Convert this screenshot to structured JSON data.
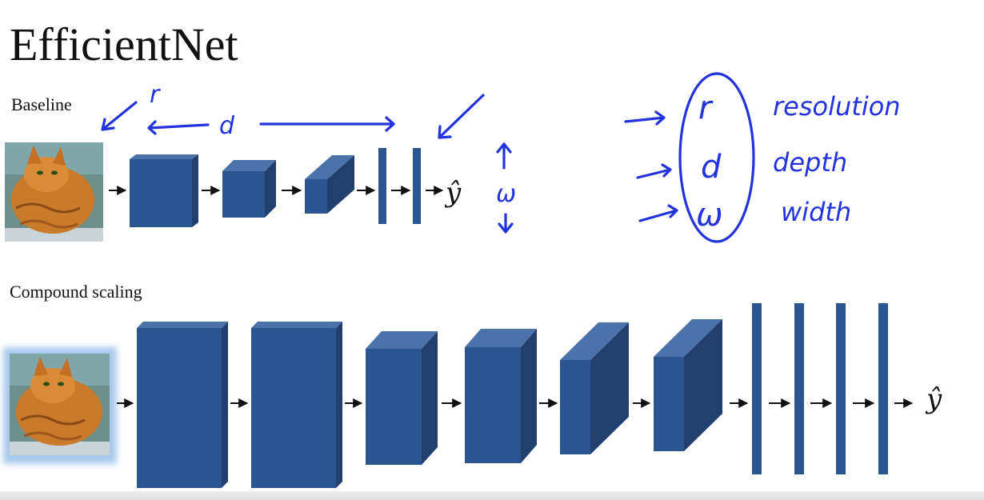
{
  "title": "EfficientNet",
  "baseline": {
    "label": "Baseline",
    "output": "ŷ"
  },
  "compound": {
    "label": "Compound scaling",
    "output": "ŷ"
  },
  "annotations": {
    "r": "r",
    "d": "d",
    "w": "ω",
    "legend": [
      {
        "symbol": "r",
        "word": "resolution"
      },
      {
        "symbol": "d",
        "word": "depth"
      },
      {
        "symbol": "ω",
        "word": "width"
      }
    ]
  },
  "colors": {
    "block_front": "#2b5591",
    "block_top": "#4b72ab",
    "block_side": "#223f6d",
    "ink": "#2233dd"
  }
}
